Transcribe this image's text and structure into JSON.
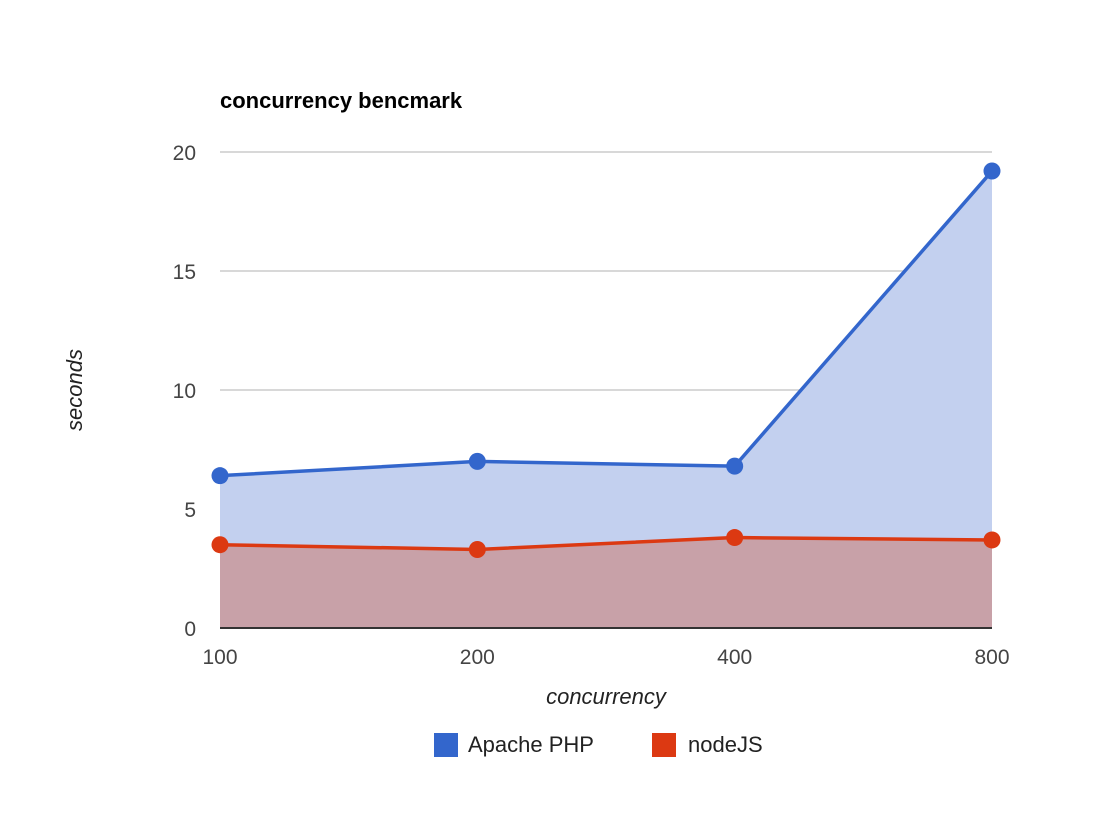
{
  "chart_data": {
    "type": "area",
    "title": "concurrency bencmark",
    "xlabel": "concurrency",
    "ylabel": "seconds",
    "categories": [
      "100",
      "200",
      "400",
      "800"
    ],
    "ylim": [
      0,
      20
    ],
    "yticks": [
      "0",
      "5",
      "10",
      "15",
      "20"
    ],
    "grid": true,
    "legend_position": "bottom",
    "series": [
      {
        "name": "Apache PHP",
        "values": [
          6.4,
          7.0,
          6.8,
          19.2
        ],
        "color": "#3366cc",
        "fill": "#c3d0ef"
      },
      {
        "name": "nodeJS",
        "values": [
          3.5,
          3.3,
          3.8,
          3.7
        ],
        "color": "#dc3912",
        "fill": "#c8a1a8"
      }
    ]
  }
}
